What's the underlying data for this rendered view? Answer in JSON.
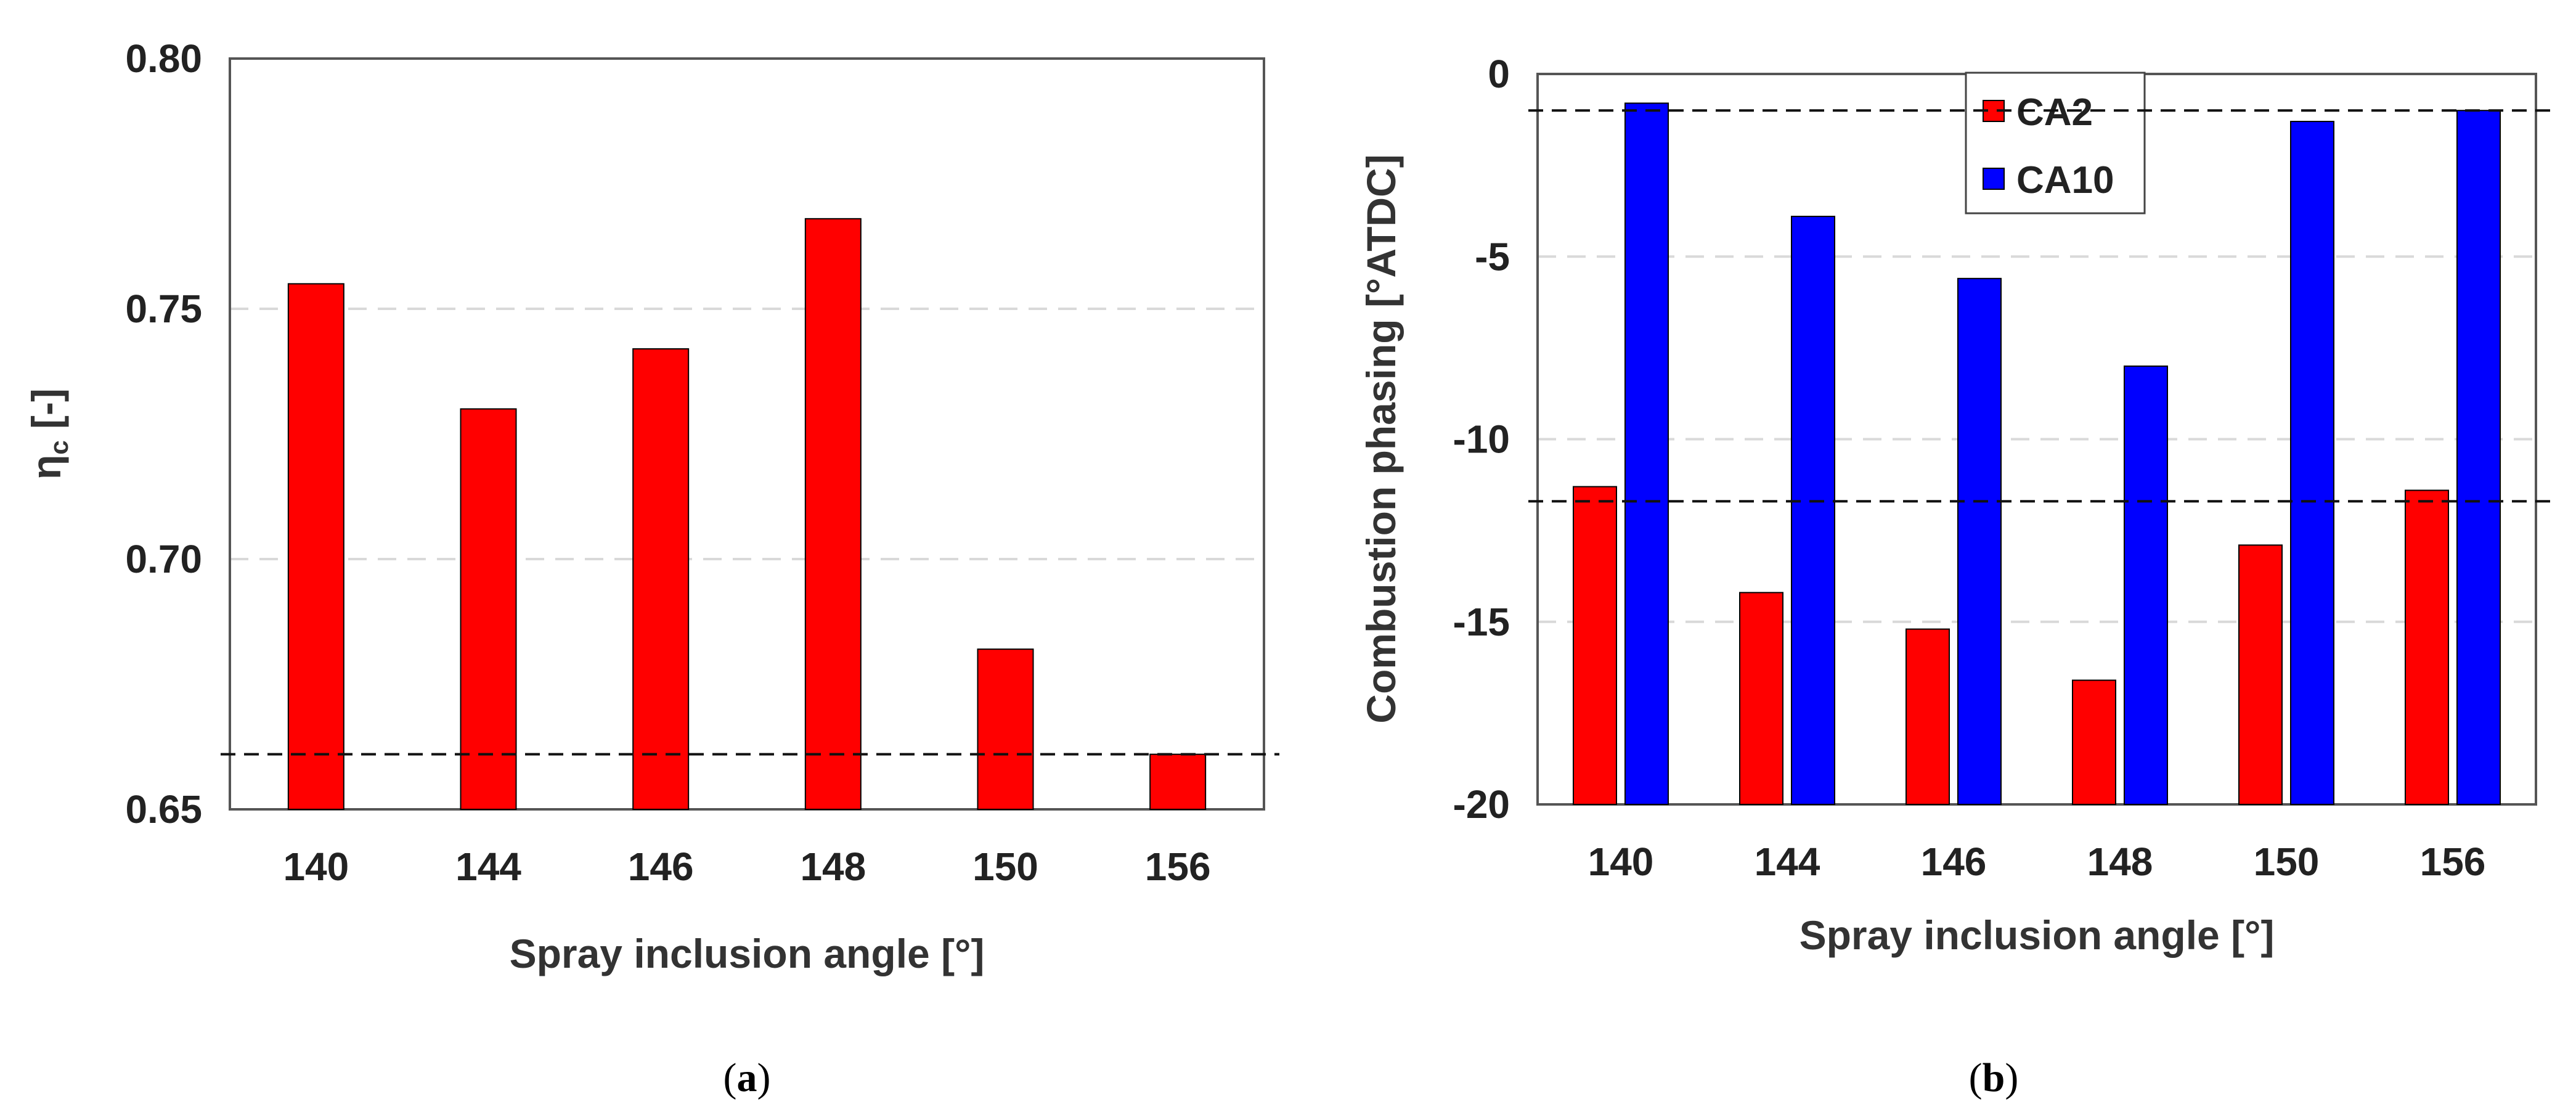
{
  "figure": {
    "captions": [
      "a",
      "b"
    ]
  },
  "chart_data": [
    {
      "id": "a",
      "type": "bar",
      "categories": [
        "140",
        "144",
        "146",
        "148",
        "150",
        "156"
      ],
      "series": [
        {
          "name": "ηc",
          "color": "#ff0000",
          "values": [
            0.755,
            0.73,
            0.742,
            0.768,
            0.682,
            0.661
          ]
        }
      ],
      "xlabel": "Spray inclusion angle [°]",
      "ylabel": "ηc [-]",
      "ylabel_main": "η",
      "ylabel_sub": "c",
      "ylabel_rest": " [-]",
      "ylim": [
        0.65,
        0.8
      ],
      "yticks": [
        0.65,
        0.7,
        0.75,
        0.8
      ],
      "ytick_labels": [
        "0.65",
        "0.70",
        "0.75",
        "0.80"
      ],
      "reference_lines": [
        0.661
      ],
      "grid": "horizontal dashed",
      "legend": null
    },
    {
      "id": "b",
      "type": "bar",
      "categories": [
        "140",
        "144",
        "146",
        "148",
        "150",
        "156"
      ],
      "series": [
        {
          "name": "CA2",
          "color": "#ff0000",
          "values": [
            -11.3,
            -14.2,
            -15.2,
            -16.6,
            -12.9,
            -11.4
          ]
        },
        {
          "name": "CA10",
          "color": "#0000ff",
          "values": [
            -0.8,
            -3.9,
            -5.6,
            -8.0,
            -1.3,
            -1.0
          ]
        }
      ],
      "xlabel": "Spray inclusion angle [°]",
      "ylabel": "Combustion phasing [°ATDC]",
      "ylim": [
        -20,
        0
      ],
      "yticks": [
        -20,
        -15,
        -10,
        -5,
        0
      ],
      "ytick_labels": [
        "-20",
        "-15",
        "-10",
        "-5",
        "0"
      ],
      "reference_lines": [
        -1.0,
        -11.7
      ],
      "grid": "horizontal dashed",
      "legend": "top-center"
    }
  ]
}
